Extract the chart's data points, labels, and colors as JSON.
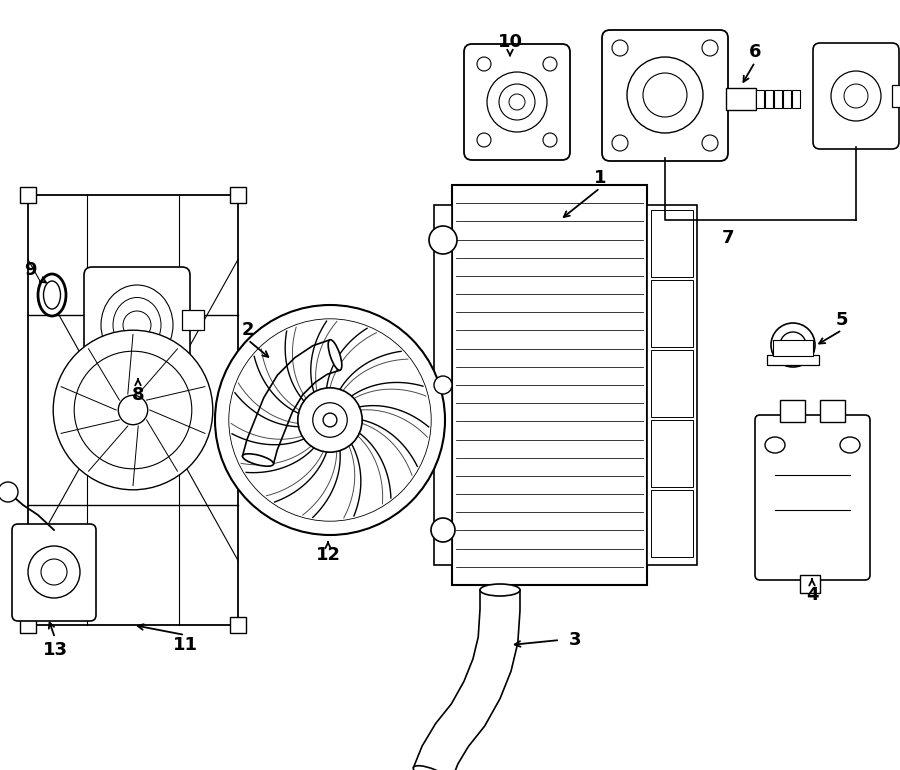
{
  "bg_color": "#ffffff",
  "line_color": "#000000",
  "fig_width": 9.0,
  "fig_height": 7.7,
  "dpi": 100
}
